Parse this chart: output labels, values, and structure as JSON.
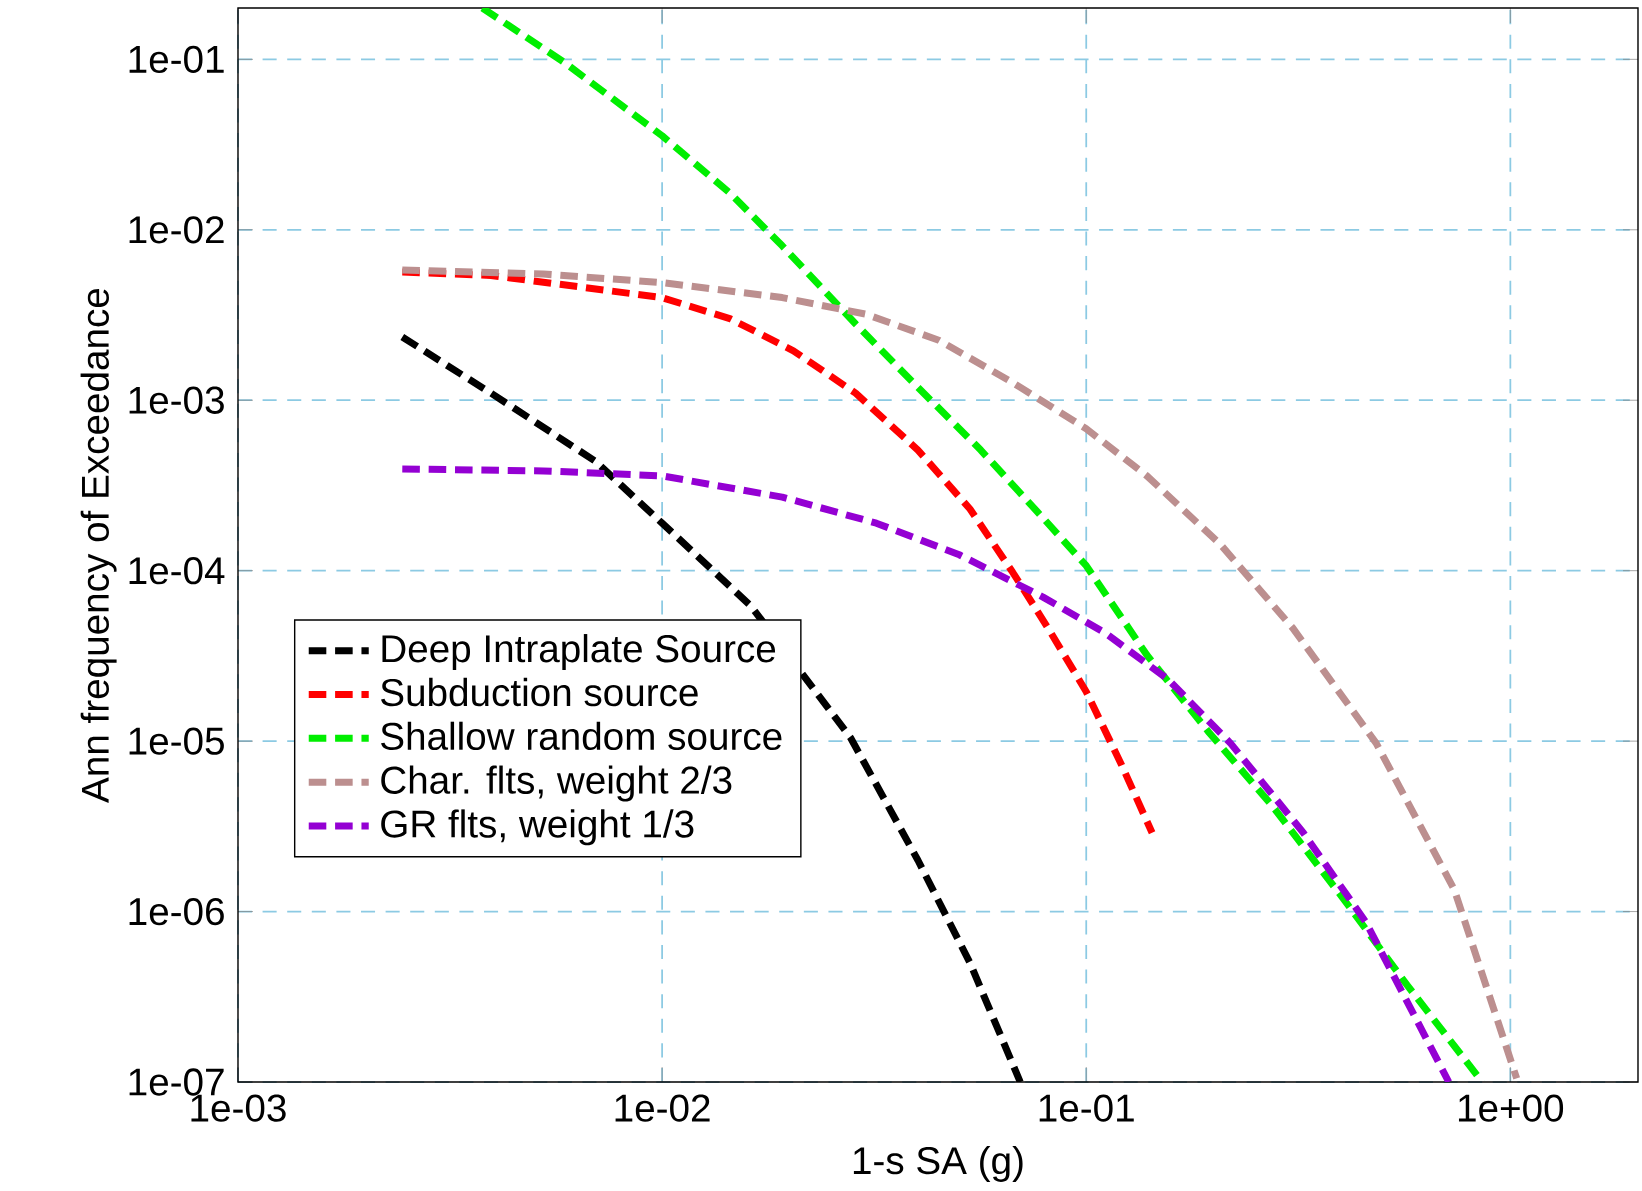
{
  "chart_data": {
    "type": "line",
    "xlabel": "1-s SA (g)",
    "ylabel": "Ann frequency of Exceedance",
    "log": "xy",
    "grid": true,
    "legend": "left",
    "marker": "none",
    "line_style": "dashed",
    "xlim": [
      0.001,
      2
    ],
    "ylim": [
      1e-07,
      0.2
    ],
    "xticks": [
      {
        "value": 0.001,
        "label": "1e-03"
      },
      {
        "value": 0.01,
        "label": "1e-02"
      },
      {
        "value": 0.1,
        "label": "1e-01"
      },
      {
        "value": 1,
        "label": "1e+00"
      }
    ],
    "yticks": [
      {
        "value": 1e-07,
        "label": "1e-07"
      },
      {
        "value": 1e-06,
        "label": "1e-06"
      },
      {
        "value": 1e-05,
        "label": "1e-05"
      },
      {
        "value": 0.0001,
        "label": "1e-04"
      },
      {
        "value": 0.001,
        "label": "1e-03"
      },
      {
        "value": 0.01,
        "label": "1e-02"
      },
      {
        "value": 0.1,
        "label": "1e-01"
      }
    ],
    "series": [
      {
        "name": "Deep Intraplate Source",
        "color": "#000000",
        "x": [
          0.00244,
          0.00395,
          0.00695,
          0.01,
          0.0162,
          0.0278,
          0.0401,
          0.0532,
          0.0699
        ],
        "values": [
          0.00235,
          0.0011,
          0.00044,
          0.00019,
          6.2e-05,
          1.05e-05,
          2e-06,
          5e-07,
          1e-07
        ]
      },
      {
        "name": "Subduction source",
        "color": "#ff0000",
        "x": [
          0.00244,
          0.00395,
          0.01,
          0.0145,
          0.0204,
          0.0286,
          0.0401,
          0.0532,
          0.0667,
          0.0813,
          0.1,
          0.121,
          0.143
        ],
        "values": [
          0.00565,
          0.0054,
          0.004,
          0.003,
          0.00195,
          0.0011,
          0.00051,
          0.00023,
          0.0001,
          4.6e-05,
          1.95e-05,
          7.3e-06,
          2.9e-06
        ]
      },
      {
        "name": "Shallow random source",
        "color": "#00ee00",
        "x": [
          0.00377,
          0.00588,
          0.01,
          0.0145,
          0.0192,
          0.0286,
          0.0401,
          0.0564,
          0.0791,
          0.1,
          0.139,
          0.195,
          0.274,
          0.407,
          0.571,
          0.859
        ],
        "values": [
          0.2,
          0.096,
          0.0356,
          0.0163,
          0.00805,
          0.0028,
          0.00119,
          0.00051,
          0.000204,
          0.000107,
          3.2e-05,
          1.12e-05,
          4.2e-06,
          1.16e-06,
          3.7e-07,
          1e-07
        ]
      },
      {
        "name": "Char. flts, weight 2/3",
        "color": "#bc8f8f",
        "x": [
          0.00244,
          0.00525,
          0.01,
          0.0192,
          0.0302,
          0.0449,
          0.0667,
          0.1,
          0.139,
          0.207,
          0.307,
          0.483,
          0.738,
          1.035
        ],
        "values": [
          0.0058,
          0.0055,
          0.0049,
          0.004,
          0.0032,
          0.00225,
          0.00128,
          0.00068,
          0.00036,
          0.000143,
          4.6e-05,
          9.7e-06,
          1.34e-06,
          1.05e-07
        ]
      },
      {
        "name": "GR flts, weight 1/3",
        "color": "#9400d3",
        "x": [
          0.00244,
          0.00525,
          0.01,
          0.0192,
          0.032,
          0.0502,
          0.0791,
          0.111,
          0.156,
          0.219,
          0.325,
          0.456,
          0.716
        ],
        "values": [
          0.000395,
          0.000385,
          0.00036,
          0.00027,
          0.00019,
          0.000124,
          7e-05,
          4.3e-05,
          2.3e-05,
          9.7e-06,
          2.9e-06,
          8.7e-07,
          1e-07
        ]
      }
    ]
  }
}
